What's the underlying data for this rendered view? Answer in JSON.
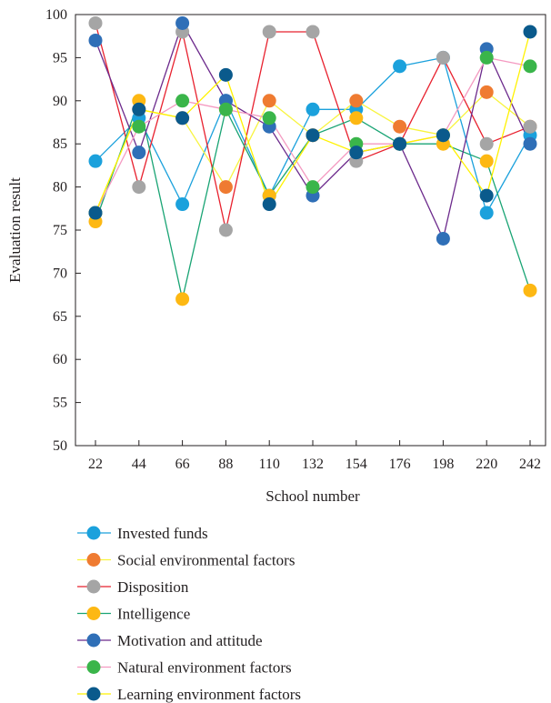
{
  "chart_data": {
    "type": "line",
    "xlabel": "School number",
    "ylabel": "Evaluation result",
    "x": [
      22,
      44,
      66,
      88,
      110,
      132,
      154,
      176,
      198,
      220,
      242
    ],
    "ylim": [
      50,
      100
    ],
    "yticks": [
      50,
      55,
      60,
      65,
      70,
      75,
      80,
      85,
      90,
      95,
      100
    ],
    "grid": false,
    "legend_position": "bottom",
    "series": [
      {
        "name": "Invested funds",
        "marker_color": "#1ba1dc",
        "line_color": "#1ba1dc",
        "values": [
          83,
          88,
          78,
          90,
          79,
          89,
          89,
          94,
          95,
          77,
          86
        ]
      },
      {
        "name": "Social environmental factors",
        "marker_color": "#ef7b31",
        "line_color": "#f8f43f",
        "values": [
          77,
          89,
          88,
          80,
          90,
          86,
          90,
          87,
          86,
          91,
          87
        ]
      },
      {
        "name": "Disposition",
        "marker_color": "#a5a5a5",
        "line_color": "#e8212e",
        "values": [
          99,
          80,
          98,
          75,
          98,
          98,
          83,
          85,
          95,
          85,
          87
        ]
      },
      {
        "name": "Intelligence",
        "marker_color": "#fdb813",
        "line_color": "#19a474",
        "values": [
          76,
          90,
          67,
          89,
          79,
          86,
          88,
          85,
          85,
          83,
          68
        ]
      },
      {
        "name": "Motivation and attitude",
        "marker_color": "#2f6fb7",
        "line_color": "#6c2a8c",
        "values": [
          97,
          84,
          99,
          90,
          87,
          79,
          84,
          85,
          74,
          96,
          85
        ]
      },
      {
        "name": "Natural environment factors",
        "marker_color": "#3ab54a",
        "line_color": "#f49ac1",
        "values": [
          77,
          87,
          90,
          89,
          88,
          80,
          85,
          85,
          86,
          95,
          94
        ]
      },
      {
        "name": "Learning environment factors",
        "marker_color": "#0a5a8c",
        "line_color": "#fff200",
        "values": [
          77,
          89,
          88,
          93,
          78,
          86,
          84,
          85,
          86,
          79,
          98
        ]
      }
    ]
  }
}
